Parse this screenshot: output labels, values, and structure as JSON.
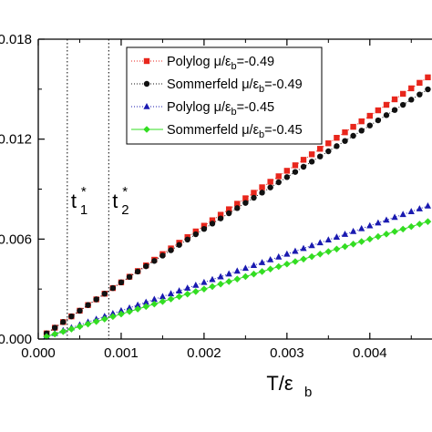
{
  "chart_data": {
    "type": "scatter",
    "xlabel": "T/ε",
    "xlabel_sub": "b",
    "ylabel": "",
    "xlim": [
      0.0,
      0.00475
    ],
    "ylim": [
      0.0,
      0.018
    ],
    "xticks": [
      {
        "value": 0.0,
        "label": "0.000"
      },
      {
        "value": 0.001,
        "label": "0.001"
      },
      {
        "value": 0.002,
        "label": "0.002"
      },
      {
        "value": 0.003,
        "label": "0.003"
      },
      {
        "value": 0.004,
        "label": "0.004"
      }
    ],
    "yticks": [
      {
        "value": 0.0,
        "label": "0.000"
      },
      {
        "value": 0.006,
        "label": "0.006"
      },
      {
        "value": 0.012,
        "label": "0.012"
      },
      {
        "value": 0.018,
        "label": "0.018"
      }
    ],
    "grid": false,
    "legend_position": "top-right",
    "x": [
      0.0001,
      0.0002,
      0.0003,
      0.0004,
      0.0005,
      0.0006,
      0.0007,
      0.0008,
      0.0009,
      0.001,
      0.0011,
      0.0012,
      0.0013,
      0.0014,
      0.0015,
      0.0016,
      0.0017,
      0.0018,
      0.0019,
      0.002,
      0.0021,
      0.0022,
      0.0023,
      0.0024,
      0.0025,
      0.0026,
      0.0027,
      0.0028,
      0.0029,
      0.003,
      0.0031,
      0.0032,
      0.0033,
      0.0034,
      0.0035,
      0.0036,
      0.0037,
      0.0038,
      0.0039,
      0.004,
      0.0041,
      0.0042,
      0.0043,
      0.0044,
      0.0045,
      0.0046,
      0.0047
    ],
    "series": [
      {
        "name": "Polylog",
        "name_mu": "μ/ε",
        "name_sub": "b",
        "name_value": "=-0.49",
        "color": "#e8261c",
        "marker": "square",
        "line_style": "dotted",
        "values": [
          0.00034,
          0.00068,
          0.00102,
          0.00136,
          0.0017,
          0.00204,
          0.00238,
          0.00272,
          0.00306,
          0.0034,
          0.00374,
          0.00408,
          0.00442,
          0.00476,
          0.0051,
          0.00544,
          0.00578,
          0.00612,
          0.00646,
          0.0068,
          0.00713,
          0.00746,
          0.00779,
          0.00812,
          0.00845,
          0.00878,
          0.00911,
          0.00944,
          0.00977,
          0.0101,
          0.01043,
          0.01076,
          0.01109,
          0.01142,
          0.01175,
          0.01208,
          0.01241,
          0.01274,
          0.01307,
          0.0134,
          0.01373,
          0.01406,
          0.01439,
          0.01472,
          0.01505,
          0.01538,
          0.01571
        ]
      },
      {
        "name": "Sommerfeld",
        "name_mu": "μ/ε",
        "name_sub": "b",
        "name_value": "=-0.49",
        "color": "#111111",
        "marker": "circle",
        "line_style": "dotted",
        "values": [
          0.00034,
          0.00068,
          0.00102,
          0.00136,
          0.0017,
          0.00204,
          0.00238,
          0.00272,
          0.00306,
          0.0034,
          0.00373,
          0.00405,
          0.00437,
          0.00469,
          0.00501,
          0.00533,
          0.00565,
          0.00597,
          0.00629,
          0.00661,
          0.00693,
          0.00724,
          0.00755,
          0.00786,
          0.00817,
          0.00848,
          0.00879,
          0.0091,
          0.00941,
          0.00972,
          0.01003,
          0.01034,
          0.01065,
          0.01096,
          0.01127,
          0.01158,
          0.01189,
          0.0122,
          0.01251,
          0.01282,
          0.01313,
          0.01344,
          0.01375,
          0.01406,
          0.01437,
          0.01468,
          0.01499
        ]
      },
      {
        "name": "Polylog",
        "name_mu": "μ/ε",
        "name_sub": "b",
        "name_value": "=-0.45",
        "color": "#1a1ab0",
        "marker": "triangle",
        "line_style": "dotted",
        "values": [
          0.00017,
          0.00034,
          0.00051,
          0.00068,
          0.00085,
          0.00102,
          0.00119,
          0.00136,
          0.00153,
          0.0017,
          0.00187,
          0.00204,
          0.00221,
          0.00238,
          0.00255,
          0.00272,
          0.00289,
          0.00306,
          0.00323,
          0.0034,
          0.00357,
          0.00374,
          0.00391,
          0.00408,
          0.00425,
          0.00442,
          0.00459,
          0.00476,
          0.00493,
          0.0051,
          0.00527,
          0.00544,
          0.00561,
          0.00578,
          0.00595,
          0.00612,
          0.00629,
          0.00646,
          0.00663,
          0.0068,
          0.00697,
          0.00714,
          0.00731,
          0.00748,
          0.00765,
          0.00782,
          0.00799
        ]
      },
      {
        "name": "Sommerfeld",
        "name_mu": "μ/ε",
        "name_sub": "b",
        "name_value": "=-0.45",
        "color": "#33dd22",
        "marker": "diamond",
        "line_style": "solid",
        "values": [
          0.00015,
          0.0003,
          0.00045,
          0.0006,
          0.00075,
          0.0009,
          0.00105,
          0.0012,
          0.00135,
          0.0015,
          0.00165,
          0.0018,
          0.00195,
          0.0021,
          0.00225,
          0.0024,
          0.00255,
          0.0027,
          0.00285,
          0.003,
          0.00315,
          0.0033,
          0.00345,
          0.0036,
          0.00375,
          0.0039,
          0.00405,
          0.0042,
          0.00435,
          0.0045,
          0.00465,
          0.0048,
          0.00495,
          0.0051,
          0.00525,
          0.0054,
          0.00555,
          0.0057,
          0.00585,
          0.006,
          0.00615,
          0.0063,
          0.00645,
          0.0066,
          0.00675,
          0.0069,
          0.00705
        ]
      }
    ],
    "vlines": [
      {
        "x": 0.00035,
        "label": "t",
        "sup": "*",
        "sub": "1"
      },
      {
        "x": 0.00085,
        "label": "t",
        "sup": "*",
        "sub": "2"
      }
    ]
  }
}
